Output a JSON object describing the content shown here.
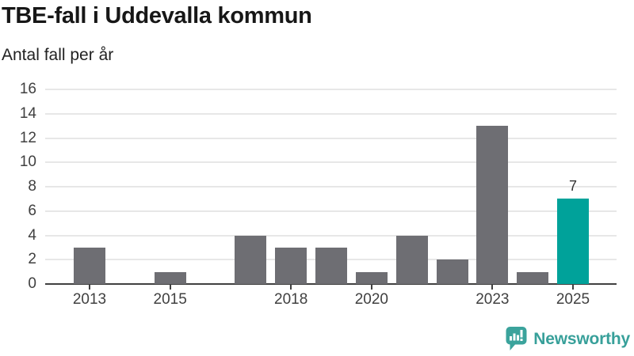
{
  "header": {
    "title": "TBE-fall i Uddevalla kommun",
    "subtitle": "Antal fall per år"
  },
  "chart_data": {
    "type": "bar",
    "title": "TBE-fall i Uddevalla kommun",
    "ylabel": "Antal fall per år",
    "categories": [
      "2013",
      "2014",
      "2015",
      "2016",
      "2017",
      "2018",
      "2019",
      "2020",
      "2021",
      "2022",
      "2023",
      "2024",
      "2025"
    ],
    "values": [
      3,
      0,
      1,
      0,
      4,
      3,
      3,
      1,
      4,
      2,
      13,
      1,
      7
    ],
    "x_tick_labels": [
      "2013",
      "2015",
      "2018",
      "2020",
      "2023",
      "2025"
    ],
    "ylim": [
      0,
      16
    ],
    "ytick_step": 2,
    "grid": true,
    "highlight_category": "2025",
    "annotations": [
      {
        "category": "2025",
        "text": "7"
      }
    ],
    "colors": {
      "bar": "#6e6e73",
      "highlight": "#00a29a",
      "axis": "#404040",
      "grid": "#e7e7e7"
    }
  },
  "footer": {
    "brand": "Newsworthy",
    "brand_color": "#38a09a",
    "logo_icon": "bar-chart-speech-bubble"
  }
}
